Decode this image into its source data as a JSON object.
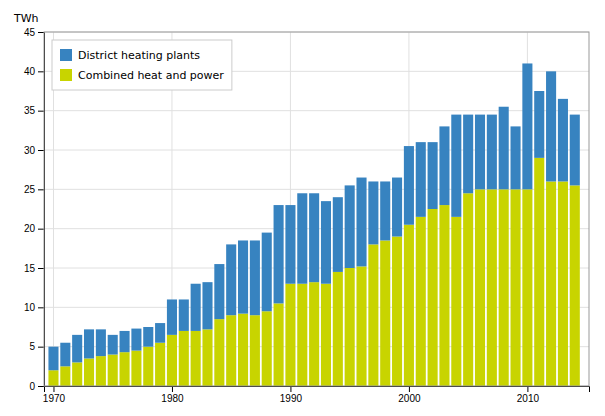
{
  "chart_data": {
    "type": "bar",
    "stacked": true,
    "ylabel": "TWh",
    "x": [
      1970,
      1971,
      1972,
      1973,
      1974,
      1975,
      1976,
      1977,
      1978,
      1979,
      1980,
      1981,
      1982,
      1983,
      1984,
      1985,
      1986,
      1987,
      1988,
      1989,
      1990,
      1991,
      1992,
      1993,
      1994,
      1995,
      1996,
      1997,
      1998,
      1999,
      2000,
      2001,
      2002,
      2003,
      2004,
      2005,
      2006,
      2007,
      2008,
      2009,
      2010,
      2011,
      2012,
      2013,
      2014
    ],
    "series": [
      {
        "name": "Combined heat and power",
        "color": "#c8d400",
        "values": [
          2.0,
          2.5,
          3.0,
          3.5,
          3.8,
          4.0,
          4.3,
          4.5,
          5.0,
          5.5,
          6.5,
          7.0,
          7.0,
          7.2,
          8.5,
          9.0,
          9.2,
          9.0,
          9.5,
          10.5,
          13.0,
          13.0,
          13.2,
          13.0,
          14.5,
          15.0,
          15.2,
          18.0,
          18.5,
          19.0,
          20.5,
          21.5,
          22.5,
          23.0,
          21.5,
          24.5,
          25.0,
          25.0,
          25.0,
          25.0,
          25.0,
          29.0,
          26.0,
          26.0,
          25.5
        ]
      },
      {
        "name": "District heating plants",
        "color": "#3783c0",
        "values": [
          3.0,
          3.0,
          3.5,
          3.7,
          3.4,
          2.5,
          2.7,
          2.8,
          2.5,
          2.5,
          4.5,
          4.0,
          6.0,
          6.0,
          7.0,
          9.0,
          9.3,
          9.5,
          10.0,
          12.5,
          10.0,
          11.5,
          11.3,
          10.5,
          9.5,
          10.5,
          11.3,
          8.0,
          7.5,
          7.5,
          10.0,
          9.5,
          8.5,
          10.0,
          13.0,
          10.0,
          9.5,
          9.5,
          10.5,
          8.0,
          16.0,
          8.5,
          14.0,
          10.5,
          9.0
        ]
      }
    ],
    "xlim": [
      1969.2,
      2015.2
    ],
    "xticks": [
      1970,
      1980,
      1990,
      2000,
      2010
    ],
    "ylim": [
      0,
      45
    ],
    "yticks": [
      0,
      5,
      10,
      15,
      20,
      25,
      30,
      35,
      40,
      45
    ],
    "grid": true,
    "legend": "upper-left"
  }
}
